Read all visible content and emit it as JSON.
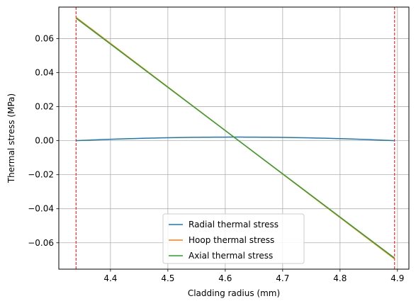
{
  "chart_data": {
    "type": "line",
    "xlabel": "Cladding radius (mm)",
    "ylabel": "Thermal stress (MPa)",
    "xlim": [
      4.31,
      4.92
    ],
    "ylim": [
      -0.0755,
      0.0785
    ],
    "xticks": [
      4.4,
      4.5,
      4.6,
      4.7,
      4.8,
      4.9
    ],
    "xtick_labels": [
      "4.4",
      "4.5",
      "4.6",
      "4.7",
      "4.8",
      "4.9"
    ],
    "yticks": [
      -0.06,
      -0.04,
      -0.02,
      0.0,
      0.02,
      0.04,
      0.06
    ],
    "ytick_labels": [
      "−0.06",
      "−0.04",
      "−0.02",
      "0.00",
      "0.02",
      "0.04",
      "0.06"
    ],
    "grid": true,
    "legend_position": "lower center",
    "vlines": [
      {
        "x": 4.34,
        "color": "#ff0000",
        "style": "dashed"
      },
      {
        "x": 4.895,
        "color": "#ff0000",
        "style": "dashed"
      }
    ],
    "series": [
      {
        "name": "Radial thermal stress",
        "color": "#1f77b4",
        "x": [
          4.34,
          4.45,
          4.55,
          4.6,
          4.65,
          4.75,
          4.85,
          4.895
        ],
        "y": [
          0.0,
          0.0012,
          0.0019,
          0.0021,
          0.002,
          0.0016,
          0.0008,
          0.0
        ]
      },
      {
        "name": "Hoop thermal stress",
        "color": "#ff7f0e",
        "x": [
          4.34,
          4.895
        ],
        "y": [
          0.0725,
          -0.0695
        ]
      },
      {
        "name": "Axial thermal stress",
        "color": "#2ca02c",
        "x": [
          4.34,
          4.895
        ],
        "y": [
          0.072,
          -0.069
        ]
      }
    ]
  }
}
